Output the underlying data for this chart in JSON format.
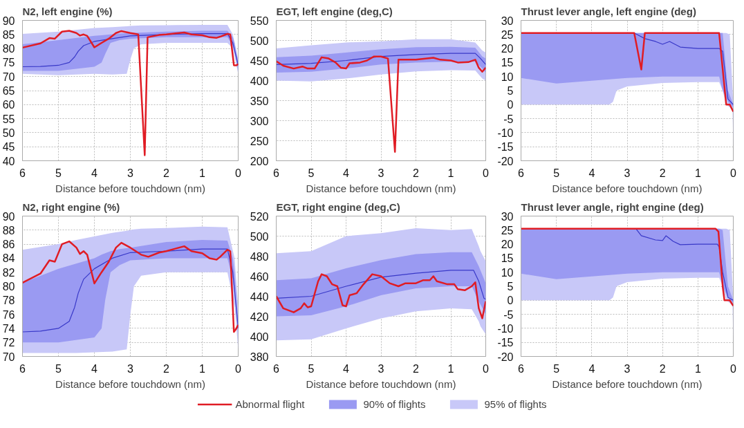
{
  "chart_data": [
    {
      "type": "line",
      "title": "N2, left engine (%)",
      "xlabel": "Distance before touchdown (nm)",
      "xlim": [
        6,
        0
      ],
      "xticks": [
        6,
        5,
        4,
        3,
        2,
        1,
        0
      ],
      "ylim": [
        40,
        90
      ],
      "yticks": [
        40,
        45,
        50,
        55,
        60,
        65,
        70,
        75,
        80,
        85,
        90
      ],
      "grid": true,
      "series": [
        {
          "color": "#c8c8f8",
          "x": [
            6,
            5,
            4,
            3.5,
            3.1,
            3.0,
            2.9,
            2.7,
            2,
            1,
            0.3,
            0.15,
            0.1,
            0
          ],
          "values": [
            null,
            null,
            null,
            null,
            null,
            null,
            null,
            null,
            null,
            null,
            null,
            null,
            null,
            null
          ],
          "lower": [
            71,
            70.5,
            71,
            70.7,
            71,
            76,
            80,
            81.5,
            82,
            82,
            82,
            80,
            77,
            71
          ],
          "upper": [
            85.2,
            86,
            87.3,
            87.6,
            87.9,
            88,
            88.1,
            88.2,
            88.3,
            88.4,
            88.4,
            85,
            82,
            76
          ]
        },
        {
          "color": "#9a9af2",
          "x": [
            6,
            5,
            4,
            3.8,
            3.7,
            3.55,
            3.3,
            3,
            2,
            1,
            0.3,
            0.15,
            0.1,
            0
          ],
          "values": [
            null,
            null,
            null,
            null,
            null,
            null,
            null,
            null,
            null,
            null,
            null,
            null,
            null,
            null
          ],
          "lower": [
            72,
            72,
            73.5,
            75,
            78,
            82,
            83,
            83.5,
            84,
            84,
            84,
            81,
            79,
            72
          ],
          "upper": [
            81.5,
            83,
            84.5,
            84.7,
            84.8,
            85,
            85.3,
            85.5,
            86,
            86.3,
            86.3,
            84,
            82,
            75
          ]
        },
        {
          "color": "#3838c8",
          "x": [
            6,
            5.5,
            5,
            4.7,
            4.55,
            4.45,
            4.3,
            4,
            3.5,
            3,
            2,
            1,
            0.3,
            0.15,
            0
          ],
          "values": [
            73.5,
            73.6,
            74,
            75,
            77,
            79,
            81,
            82.5,
            83.5,
            84.5,
            85,
            85.3,
            85.3,
            82,
            74
          ]
        },
        {
          "color": "#e01c24",
          "x": [
            6,
            5.5,
            5.25,
            5.1,
            4.9,
            4.7,
            4.5,
            4.4,
            4.3,
            4.2,
            4,
            3.8,
            3.6,
            3.4,
            3.25,
            3,
            2.78,
            2.6,
            2.52,
            2.2,
            2,
            1.5,
            1.3,
            1,
            0.8,
            0.6,
            0.5,
            0.3,
            0.22,
            0.12,
            0.05,
            0
          ],
          "values": [
            80.3,
            81.8,
            83.7,
            83.5,
            86,
            86.3,
            85.5,
            84.6,
            85,
            84.5,
            80.4,
            82,
            83.5,
            85.5,
            86.2,
            85.5,
            85,
            42,
            84,
            84.8,
            85,
            85.7,
            85,
            84.7,
            84,
            83.8,
            84.2,
            85.2,
            85,
            74,
            74,
            74.5
          ]
        }
      ]
    },
    {
      "type": "line",
      "title": "EGT, left engine (deg,C)",
      "xlabel": "Distance before touchdown (nm)",
      "xlim": [
        6,
        0
      ],
      "xticks": [
        6,
        5,
        4,
        3,
        2,
        1,
        0
      ],
      "ylim": [
        200,
        550
      ],
      "yticks": [
        200,
        250,
        300,
        350,
        400,
        450,
        500,
        550
      ],
      "grid": true,
      "series": [
        {
          "color": "#c8c8f8",
          "x": [
            6,
            5,
            4,
            3,
            2,
            1,
            0.3,
            0.1,
            0
          ],
          "values": [
            null,
            null,
            null,
            null,
            null,
            null,
            null,
            null,
            null
          ],
          "lower": [
            400,
            398,
            405,
            415,
            423,
            426,
            425,
            405,
            400
          ],
          "upper": [
            480,
            488,
            495,
            498,
            503,
            503,
            495,
            475,
            470
          ]
        },
        {
          "color": "#9a9af2",
          "x": [
            6,
            5,
            4,
            3,
            2,
            1,
            0.3,
            0.1,
            0
          ],
          "values": [
            null,
            null,
            null,
            null,
            null,
            null,
            null,
            null,
            null
          ],
          "lower": [
            420,
            422,
            430,
            440,
            445,
            447,
            447,
            430,
            420
          ],
          "upper": [
            458,
            462,
            470,
            478,
            483,
            484,
            482,
            460,
            455
          ]
        },
        {
          "color": "#3838c8",
          "x": [
            6,
            5,
            4,
            3,
            2,
            1,
            0.3,
            0.15,
            0
          ],
          "values": [
            440,
            443,
            450,
            460,
            465,
            468,
            468,
            455,
            440
          ]
        },
        {
          "color": "#e01c24",
          "x": [
            6,
            5.8,
            5.5,
            5.25,
            5.1,
            4.9,
            4.7,
            4.5,
            4.3,
            4.15,
            4,
            3.9,
            3.6,
            3.4,
            3.2,
            3,
            2.8,
            2.6,
            2.5,
            2,
            1.5,
            1.3,
            1,
            0.8,
            0.5,
            0.3,
            0.2,
            0.1,
            0
          ],
          "values": [
            448,
            437,
            430,
            435,
            430,
            430,
            458,
            455,
            445,
            432,
            430,
            443,
            445,
            450,
            460,
            460,
            455,
            222,
            452,
            452,
            457,
            452,
            450,
            445,
            446,
            452,
            432,
            422,
            432
          ]
        }
      ]
    },
    {
      "type": "line",
      "title": "Thrust lever angle, left engine (deg)",
      "xlabel": "Distance before touchdown (nm)",
      "xlim": [
        6,
        0
      ],
      "xticks": [
        6,
        5,
        4,
        3,
        2,
        1,
        0
      ],
      "ylim": [
        -20,
        30
      ],
      "yticks": [
        -20,
        -15,
        -10,
        -5,
        0,
        5,
        10,
        15,
        20,
        25,
        30
      ],
      "grid": true,
      "series": [
        {
          "color": "#c8c8f8",
          "x": [
            6,
            3.5,
            3.4,
            3.3,
            3.1,
            3,
            2,
            1,
            0.4,
            0.3,
            0.2,
            0.1,
            0.02,
            0
          ],
          "values": [
            null,
            null,
            null,
            null,
            null,
            null,
            null,
            null,
            null,
            null,
            null,
            null,
            null,
            null
          ],
          "lower": [
            0,
            0,
            1,
            5,
            6,
            6.5,
            7.7,
            8,
            8,
            5,
            0,
            -1,
            -2,
            -15
          ],
          "upper": [
            25.5,
            25.5,
            25.5,
            25.5,
            25.5,
            25.5,
            25.5,
            25.5,
            25.5,
            25.5,
            25.5,
            25,
            5,
            0
          ]
        },
        {
          "color": "#9a9af2",
          "x": [
            6,
            5,
            4,
            3,
            2,
            1,
            0.4,
            0.3,
            0.15,
            0
          ],
          "values": [
            null,
            null,
            null,
            null,
            null,
            null,
            null,
            null,
            null,
            null
          ],
          "lower": [
            9.5,
            7.5,
            8.5,
            9.5,
            10,
            10,
            10,
            5,
            1,
            -1
          ],
          "upper": [
            25.5,
            25.5,
            25.5,
            25.5,
            25.5,
            25.5,
            25.5,
            25.5,
            5,
            0
          ]
        },
        {
          "color": "#3838c8",
          "x": [
            6,
            2.8,
            2.5,
            2.2,
            2,
            1.8,
            1.5,
            1,
            0.4,
            0.3,
            0.15,
            0
          ],
          "values": [
            25.5,
            25.5,
            23.5,
            22.5,
            21.5,
            22.5,
            20.5,
            20,
            20,
            19,
            2,
            0
          ]
        },
        {
          "color": "#e01c24",
          "x": [
            6,
            2.8,
            2.6,
            2.5,
            0.4,
            0.2,
            0.1,
            0
          ],
          "values": [
            25.5,
            25.5,
            12.5,
            25.5,
            25.5,
            0,
            0,
            -2.5
          ]
        }
      ]
    },
    {
      "type": "line",
      "title": "N2, right engine (%)",
      "xlabel": "Distance before touchdown (nm)",
      "xlim": [
        6,
        0
      ],
      "xticks": [
        6,
        5,
        4,
        3,
        2,
        1,
        0
      ],
      "ylim": [
        70,
        90
      ],
      "yticks": [
        70,
        72,
        74,
        76,
        78,
        80,
        82,
        84,
        86,
        88,
        90
      ],
      "grid": true,
      "series": [
        {
          "color": "#c8c8f8",
          "x": [
            6,
            5,
            4.5,
            3.5,
            3.1,
            3.0,
            2.9,
            2.7,
            2,
            1,
            0.3,
            0.1,
            0
          ],
          "values": [
            null,
            null,
            null,
            null,
            null,
            null,
            null,
            null,
            null,
            null,
            null,
            null,
            null
          ],
          "lower": [
            70.5,
            70.5,
            70.5,
            70.7,
            71,
            76,
            80,
            81.5,
            82,
            82,
            82,
            77,
            71
          ],
          "upper": [
            85.2,
            86,
            86.6,
            87.6,
            87.9,
            88,
            88.1,
            88.2,
            88.3,
            88.5,
            88.4,
            84,
            77
          ]
        },
        {
          "color": "#9a9af2",
          "x": [
            6,
            5,
            4,
            3.8,
            3.7,
            3.55,
            3.3,
            3,
            2,
            1,
            0.3,
            0.15,
            0.1,
            0
          ],
          "values": [
            null,
            null,
            null,
            null,
            null,
            null,
            null,
            null,
            null,
            null,
            null,
            null,
            null,
            null
          ],
          "lower": [
            72,
            72,
            72.7,
            74,
            78,
            82,
            83,
            83.7,
            84,
            84,
            84,
            81,
            79,
            73
          ],
          "upper": [
            80.5,
            82.5,
            84,
            84.5,
            84.7,
            85,
            85.3,
            85.5,
            86.3,
            86.6,
            86.5,
            84,
            82,
            75
          ]
        },
        {
          "color": "#3838c8",
          "x": [
            6,
            5.5,
            5,
            4.7,
            4.55,
            4.45,
            4.3,
            4,
            3.5,
            3,
            2,
            1,
            0.3,
            0.15,
            0
          ],
          "values": [
            73.5,
            73.6,
            74,
            75,
            77,
            79,
            81,
            82.5,
            84,
            84.8,
            85,
            85.3,
            85.3,
            82,
            74
          ]
        },
        {
          "color": "#e01c24",
          "x": [
            6,
            5.5,
            5.25,
            5.1,
            4.9,
            4.7,
            4.5,
            4.4,
            4.3,
            4.2,
            4,
            3.8,
            3.6,
            3.4,
            3.25,
            3,
            2.7,
            2.5,
            2.2,
            2,
            1.5,
            1.3,
            1,
            0.8,
            0.6,
            0.5,
            0.3,
            0.22,
            0.12,
            0.05,
            0
          ],
          "values": [
            80.5,
            81.8,
            83.7,
            83.5,
            86,
            86.4,
            85.5,
            84.6,
            85,
            84.5,
            80.4,
            82,
            83.5,
            85.5,
            86.2,
            85.5,
            84.5,
            84.2,
            84.8,
            85,
            85.7,
            85,
            84.7,
            84,
            83.8,
            84.2,
            85.2,
            85,
            73.5,
            74,
            74.5
          ]
        }
      ]
    },
    {
      "type": "line",
      "title": "EGT, right engine (deg,C)",
      "xlabel": "Distance before touchdown (nm)",
      "xlim": [
        6,
        0
      ],
      "xticks": [
        6,
        5,
        4,
        3,
        2,
        1,
        0
      ],
      "ylim": [
        380,
        520
      ],
      "yticks": [
        380,
        400,
        420,
        440,
        460,
        480,
        500,
        520
      ],
      "grid": true,
      "series": [
        {
          "color": "#c8c8f8",
          "x": [
            6,
            5,
            4,
            3,
            2,
            1,
            0.4,
            0.2,
            0.15,
            0
          ],
          "values": [
            null,
            null,
            null,
            null,
            null,
            null,
            null,
            null,
            null,
            null
          ],
          "lower": [
            396,
            397,
            408,
            418,
            425,
            428,
            427,
            415,
            410,
            402
          ],
          "upper": [
            483,
            485,
            500,
            503,
            508,
            506,
            507,
            490,
            485,
            475
          ]
        },
        {
          "color": "#9a9af2",
          "x": [
            6,
            5,
            4,
            3,
            2,
            1,
            0.4,
            0.2,
            0
          ],
          "values": [
            null,
            null,
            null,
            null,
            null,
            null,
            null,
            null,
            null
          ],
          "lower": [
            420,
            421,
            430,
            441,
            448,
            450,
            450,
            435,
            422
          ],
          "upper": [
            456,
            458,
            468,
            476,
            482,
            484,
            484,
            470,
            453
          ]
        },
        {
          "color": "#3838c8",
          "x": [
            6,
            5,
            4,
            3,
            2,
            1,
            0.35,
            0.2,
            0.05,
            0
          ],
          "values": [
            438,
            440,
            450,
            459,
            463,
            466,
            466,
            455,
            438,
            437
          ]
        },
        {
          "color": "#e01c24",
          "x": [
            6,
            5.8,
            5.5,
            5.3,
            5.2,
            5.1,
            5,
            4.8,
            4.7,
            4.55,
            4.4,
            4.25,
            4.1,
            4,
            3.9,
            3.7,
            3.5,
            3.25,
            3,
            2.75,
            2.5,
            2.3,
            2,
            1.8,
            1.6,
            1.5,
            1.4,
            1.1,
            0.9,
            0.8,
            0.6,
            0.4,
            0.3,
            0.2,
            0.1,
            0
          ],
          "values": [
            440,
            428,
            424,
            428,
            433,
            429,
            430,
            455,
            462,
            460,
            452,
            450,
            431,
            430,
            441,
            443,
            452,
            462,
            460,
            453,
            450,
            453,
            453,
            456,
            456,
            460,
            455,
            452,
            452,
            447,
            446,
            450,
            454,
            428,
            418,
            435
          ]
        }
      ]
    },
    {
      "type": "line",
      "title": "Thrust lever angle, right engine (deg)",
      "xlabel": "Distance before touchdown (nm)",
      "xlim": [
        6,
        0
      ],
      "xticks": [
        6,
        5,
        4,
        3,
        2,
        1,
        0
      ],
      "ylim": [
        -20,
        30
      ],
      "yticks": [
        -20,
        -15,
        -10,
        -5,
        0,
        5,
        10,
        15,
        20,
        25,
        30
      ],
      "grid": true,
      "legend": "bottom",
      "series": [
        {
          "name": "95% of flights",
          "color": "#c8c8f8",
          "x": [
            6,
            3.5,
            3.4,
            3.3,
            3.1,
            3,
            2,
            1,
            0.4,
            0.3,
            0.2,
            0.1,
            0.02,
            0
          ],
          "values": [
            null,
            null,
            null,
            null,
            null,
            null,
            null,
            null,
            null,
            null,
            null,
            null,
            null,
            null
          ],
          "lower": [
            0,
            0,
            1,
            5,
            6,
            6.5,
            7.7,
            8,
            8,
            5,
            0,
            -1,
            -2,
            -15
          ],
          "upper": [
            25.5,
            25.5,
            25.5,
            25.5,
            25.5,
            25.5,
            25.5,
            25.5,
            25.5,
            25.5,
            25.5,
            25,
            5,
            0
          ]
        },
        {
          "name": "90% of flights",
          "color": "#9a9af2",
          "x": [
            6,
            5,
            4,
            3,
            2,
            1,
            0.4,
            0.3,
            0.15,
            0
          ],
          "values": [
            null,
            null,
            null,
            null,
            null,
            null,
            null,
            null,
            null,
            null
          ],
          "lower": [
            9.5,
            7.5,
            8.5,
            9.5,
            10,
            10,
            10,
            5,
            1,
            -1
          ],
          "upper": [
            25.5,
            25.5,
            25.5,
            25.5,
            25.5,
            25.5,
            25.5,
            25,
            5,
            0
          ]
        },
        {
          "color": "#3838c8",
          "x": [
            6,
            2.75,
            2.6,
            2.2,
            2,
            1.9,
            1.7,
            1.5,
            1,
            0.45,
            0.4,
            0.3,
            0.15,
            0
          ],
          "values": [
            25.5,
            25.5,
            23,
            21.5,
            21.3,
            23,
            21,
            19.8,
            20,
            20,
            19,
            10,
            1,
            0
          ]
        },
        {
          "name": "Abnormal flight",
          "color": "#e01c24",
          "x": [
            6,
            0.5,
            0.42,
            0.3,
            0.25,
            0.1,
            0
          ],
          "values": [
            25.5,
            25.5,
            24.5,
            5,
            0,
            0,
            -2
          ]
        }
      ]
    }
  ]
}
